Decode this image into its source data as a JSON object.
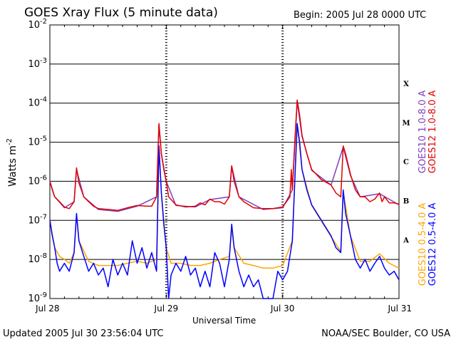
{
  "title": "GOES Xray Flux (5 minute data)",
  "begin": "Begin:  2005 Jul 28 0000 UTC",
  "updated": "Updated 2005 Jul 30 23:56:04 UTC",
  "credit": "NOAA/SEC Boulder, CO USA",
  "chart_data": {
    "type": "line",
    "title": "GOES Xray Flux (5 minute data)",
    "xlabel": "Universal Time",
    "ylabel": "Watts m",
    "ylabel_sup": "-2",
    "ylog": true,
    "ylim": [
      1e-09,
      0.01
    ],
    "xlim": [
      0,
      72
    ],
    "x_unit": "hours since 2005 Jul 28 0000 UTC",
    "x_ticks": [
      {
        "x": 0,
        "label": "Jul 28"
      },
      {
        "x": 24,
        "label": "Jul 29"
      },
      {
        "x": 48,
        "label": "Jul 30"
      },
      {
        "x": 72,
        "label": "Jul 31"
      }
    ],
    "y_ticks": [
      {
        "base": "10",
        "exp": "-9",
        "value": 1e-09
      },
      {
        "base": "10",
        "exp": "-8",
        "value": 1e-08
      },
      {
        "base": "10",
        "exp": "-7",
        "value": 1e-07
      },
      {
        "base": "10",
        "exp": "-6",
        "value": 1e-06
      },
      {
        "base": "10",
        "exp": "-5",
        "value": 1e-05
      },
      {
        "base": "10",
        "exp": "-4",
        "value": 0.0001
      },
      {
        "base": "10",
        "exp": "-3",
        "value": 0.001
      },
      {
        "base": "10",
        "exp": "-2",
        "value": 0.01
      }
    ],
    "flare_classes": [
      {
        "label": "A",
        "value": 3.2e-08
      },
      {
        "label": "B",
        "value": 3.2e-07
      },
      {
        "label": "C",
        "value": 3.2e-06
      },
      {
        "label": "M",
        "value": 3.2e-05
      },
      {
        "label": "X",
        "value": 0.00032
      }
    ],
    "grid": true,
    "series": [
      {
        "name": "GOES12 1.0-8.0 A",
        "color": "#e00000",
        "points": [
          [
            0,
            1e-06
          ],
          [
            0.5,
            6e-07
          ],
          [
            1,
            4e-07
          ],
          [
            2,
            3e-07
          ],
          [
            3,
            2.2e-07
          ],
          [
            4,
            2e-07
          ],
          [
            5,
            3e-07
          ],
          [
            5.5,
            2.2e-06
          ],
          [
            6,
            9e-07
          ],
          [
            7,
            4e-07
          ],
          [
            8,
            3e-07
          ],
          [
            9,
            2.3e-07
          ],
          [
            10,
            2e-07
          ],
          [
            12,
            1.9e-07
          ],
          [
            14,
            1.8e-07
          ],
          [
            16,
            2.1e-07
          ],
          [
            18,
            2.4e-07
          ],
          [
            20,
            2.3e-07
          ],
          [
            21,
            2.3e-07
          ],
          [
            22,
            4e-07
          ],
          [
            22.5,
            3e-05
          ],
          [
            23,
            5e-06
          ],
          [
            23.5,
            2e-06
          ],
          [
            24,
            1e-06
          ],
          [
            24.5,
            4e-07
          ],
          [
            26,
            2.5e-07
          ],
          [
            28,
            2.2e-07
          ],
          [
            30,
            2.3e-07
          ],
          [
            31,
            2.8e-07
          ],
          [
            32,
            2.5e-07
          ],
          [
            33,
            3.5e-07
          ],
          [
            34,
            3e-07
          ],
          [
            35,
            3e-07
          ],
          [
            36,
            2.6e-07
          ],
          [
            37,
            4e-07
          ],
          [
            37.5,
            2.5e-06
          ],
          [
            38,
            1e-06
          ],
          [
            39,
            4e-07
          ],
          [
            40,
            3e-07
          ],
          [
            42,
            2.1e-07
          ],
          [
            44,
            2e-07
          ],
          [
            46,
            2e-07
          ],
          [
            47,
            2.1e-07
          ],
          [
            48,
            2.2e-07
          ],
          [
            49.5,
            4e-07
          ],
          [
            49.8,
            2e-06
          ],
          [
            50,
            6e-07
          ],
          [
            50.5,
            1e-05
          ],
          [
            51,
            0.00012
          ],
          [
            51.5,
            5e-05
          ],
          [
            52,
            1.5e-05
          ],
          [
            53,
            5e-06
          ],
          [
            54,
            2e-06
          ],
          [
            56,
            1.1e-06
          ],
          [
            58,
            8e-07
          ],
          [
            59,
            5e-07
          ],
          [
            60,
            4e-07
          ],
          [
            60.5,
            8e-06
          ],
          [
            61,
            5e-06
          ],
          [
            62,
            1.5e-06
          ],
          [
            63,
            6e-07
          ],
          [
            64,
            4e-07
          ],
          [
            65,
            4e-07
          ],
          [
            66,
            3e-07
          ],
          [
            67,
            3.5e-07
          ],
          [
            68,
            5e-07
          ],
          [
            68.5,
            3e-07
          ],
          [
            69,
            4e-07
          ],
          [
            70,
            2.8e-07
          ],
          [
            71,
            2.8e-07
          ],
          [
            72,
            2.6e-07
          ]
        ]
      },
      {
        "name": "GOES10 1.0-8.0 A",
        "color": "#7f3fbf",
        "points": [
          [
            0,
            1e-06
          ],
          [
            1,
            4e-07
          ],
          [
            3,
            2.1e-07
          ],
          [
            5,
            3e-07
          ],
          [
            5.5,
            2e-06
          ],
          [
            7,
            4e-07
          ],
          [
            10,
            1.9e-07
          ],
          [
            14,
            1.7e-07
          ],
          [
            18,
            2.3e-07
          ],
          [
            22,
            4e-07
          ],
          [
            22.5,
            2.8e-05
          ],
          [
            23,
            5e-06
          ],
          [
            24,
            1e-06
          ],
          [
            26,
            2.4e-07
          ],
          [
            30,
            2.2e-07
          ],
          [
            33,
            3.4e-07
          ],
          [
            37,
            4e-07
          ],
          [
            37.5,
            2.4e-06
          ],
          [
            39,
            4e-07
          ],
          [
            44,
            1.9e-07
          ],
          [
            48,
            2.1e-07
          ],
          [
            50,
            6e-07
          ],
          [
            51,
            0.00011
          ],
          [
            52,
            1.4e-05
          ],
          [
            54,
            1.9e-06
          ],
          [
            58,
            8e-07
          ],
          [
            60.5,
            7.5e-06
          ],
          [
            62,
            1.4e-06
          ],
          [
            64,
            4e-07
          ],
          [
            68,
            4.8e-07
          ],
          [
            72,
            2.5e-07
          ]
        ]
      },
      {
        "name": "GOES12 0.5-4.0 A",
        "color": "#0000ff",
        "points": [
          [
            0,
            1e-07
          ],
          [
            0.5,
            4e-08
          ],
          [
            1,
            2e-08
          ],
          [
            1.5,
            8e-09
          ],
          [
            2,
            5e-09
          ],
          [
            3,
            8e-09
          ],
          [
            4,
            5e-09
          ],
          [
            5,
            1.5e-08
          ],
          [
            5.5,
            1.5e-07
          ],
          [
            6,
            3e-08
          ],
          [
            7,
            1.2e-08
          ],
          [
            8,
            5e-09
          ],
          [
            9,
            8e-09
          ],
          [
            10,
            4e-09
          ],
          [
            11,
            6e-09
          ],
          [
            12,
            2e-09
          ],
          [
            13,
            1e-08
          ],
          [
            14,
            4e-09
          ],
          [
            15,
            8e-09
          ],
          [
            16,
            4e-09
          ],
          [
            17,
            3e-08
          ],
          [
            18,
            8e-09
          ],
          [
            19,
            2e-08
          ],
          [
            20,
            6e-09
          ],
          [
            21,
            1.5e-08
          ],
          [
            22,
            5e-09
          ],
          [
            22.5,
            8e-06
          ],
          [
            23,
            5e-07
          ],
          [
            23.5,
            8e-08
          ],
          [
            24,
            2e-08
          ],
          [
            24.5,
            1e-09
          ],
          [
            25,
            4e-09
          ],
          [
            26,
            8e-09
          ],
          [
            27,
            5e-09
          ],
          [
            28,
            1.2e-08
          ],
          [
            29,
            4e-09
          ],
          [
            30,
            6e-09
          ],
          [
            31,
            2e-09
          ],
          [
            32,
            5e-09
          ],
          [
            33,
            2e-09
          ],
          [
            34,
            1.5e-08
          ],
          [
            35,
            8e-09
          ],
          [
            36,
            2e-09
          ],
          [
            37,
            1e-08
          ],
          [
            37.5,
            8e-08
          ],
          [
            38,
            2e-08
          ],
          [
            39,
            5e-09
          ],
          [
            40,
            2e-09
          ],
          [
            41,
            4e-09
          ],
          [
            42,
            2e-09
          ],
          [
            43,
            3e-09
          ],
          [
            44,
            1e-09
          ],
          [
            46,
            1e-09
          ],
          [
            47,
            5e-09
          ],
          [
            48,
            3e-09
          ],
          [
            49,
            5e-09
          ],
          [
            50,
            3e-08
          ],
          [
            50.5,
            1e-06
          ],
          [
            51,
            3e-05
          ],
          [
            51.5,
            1e-05
          ],
          [
            52,
            2e-06
          ],
          [
            53,
            6e-07
          ],
          [
            54,
            2.5e-07
          ],
          [
            56,
            1e-07
          ],
          [
            58,
            4e-08
          ],
          [
            59,
            2e-08
          ],
          [
            60,
            1.5e-08
          ],
          [
            60.5,
            6e-07
          ],
          [
            61,
            1.5e-07
          ],
          [
            62,
            4e-08
          ],
          [
            63,
            1e-08
          ],
          [
            64,
            6e-09
          ],
          [
            65,
            1e-08
          ],
          [
            66,
            5e-09
          ],
          [
            67,
            8e-09
          ],
          [
            68,
            1.2e-08
          ],
          [
            69,
            6e-09
          ],
          [
            70,
            4e-09
          ],
          [
            71,
            5e-09
          ],
          [
            72,
            3e-09
          ]
        ]
      },
      {
        "name": "GOES10 0.5-4.0 A",
        "color": "#ffa500",
        "points": [
          [
            0,
            1e-07
          ],
          [
            1,
            2e-08
          ],
          [
            2,
            1.2e-08
          ],
          [
            3,
            1e-08
          ],
          [
            4,
            8e-09
          ],
          [
            5,
            1.5e-08
          ],
          [
            5.5,
            1.3e-07
          ],
          [
            6,
            3e-08
          ],
          [
            8,
            9e-09
          ],
          [
            10,
            7e-09
          ],
          [
            12,
            7e-09
          ],
          [
            14,
            7e-09
          ],
          [
            16,
            8e-09
          ],
          [
            18,
            9e-09
          ],
          [
            20,
            8e-09
          ],
          [
            22,
            1e-08
          ],
          [
            22.5,
            7e-06
          ],
          [
            23,
            5e-07
          ],
          [
            24,
            2e-08
          ],
          [
            25,
            8e-09
          ],
          [
            27,
            8e-09
          ],
          [
            29,
            7e-09
          ],
          [
            31,
            7e-09
          ],
          [
            33,
            8e-09
          ],
          [
            35,
            1e-08
          ],
          [
            37,
            1.2e-08
          ],
          [
            37.5,
            6e-08
          ],
          [
            38,
            2e-08
          ],
          [
            40,
            8e-09
          ],
          [
            42,
            7e-09
          ],
          [
            44,
            6e-09
          ],
          [
            46,
            6e-09
          ],
          [
            48,
            7e-09
          ],
          [
            50,
            3e-08
          ],
          [
            50.5,
            9e-07
          ],
          [
            51,
            2.8e-05
          ],
          [
            52,
            2e-06
          ],
          [
            54,
            2.4e-07
          ],
          [
            58,
            3.8e-08
          ],
          [
            60,
            1.6e-08
          ],
          [
            60.5,
            5.5e-07
          ],
          [
            62,
            4e-08
          ],
          [
            64,
            9e-09
          ],
          [
            66,
            9e-09
          ],
          [
            68,
            1.4e-08
          ],
          [
            70,
            8e-09
          ],
          [
            72,
            6e-09
          ]
        ]
      }
    ]
  }
}
